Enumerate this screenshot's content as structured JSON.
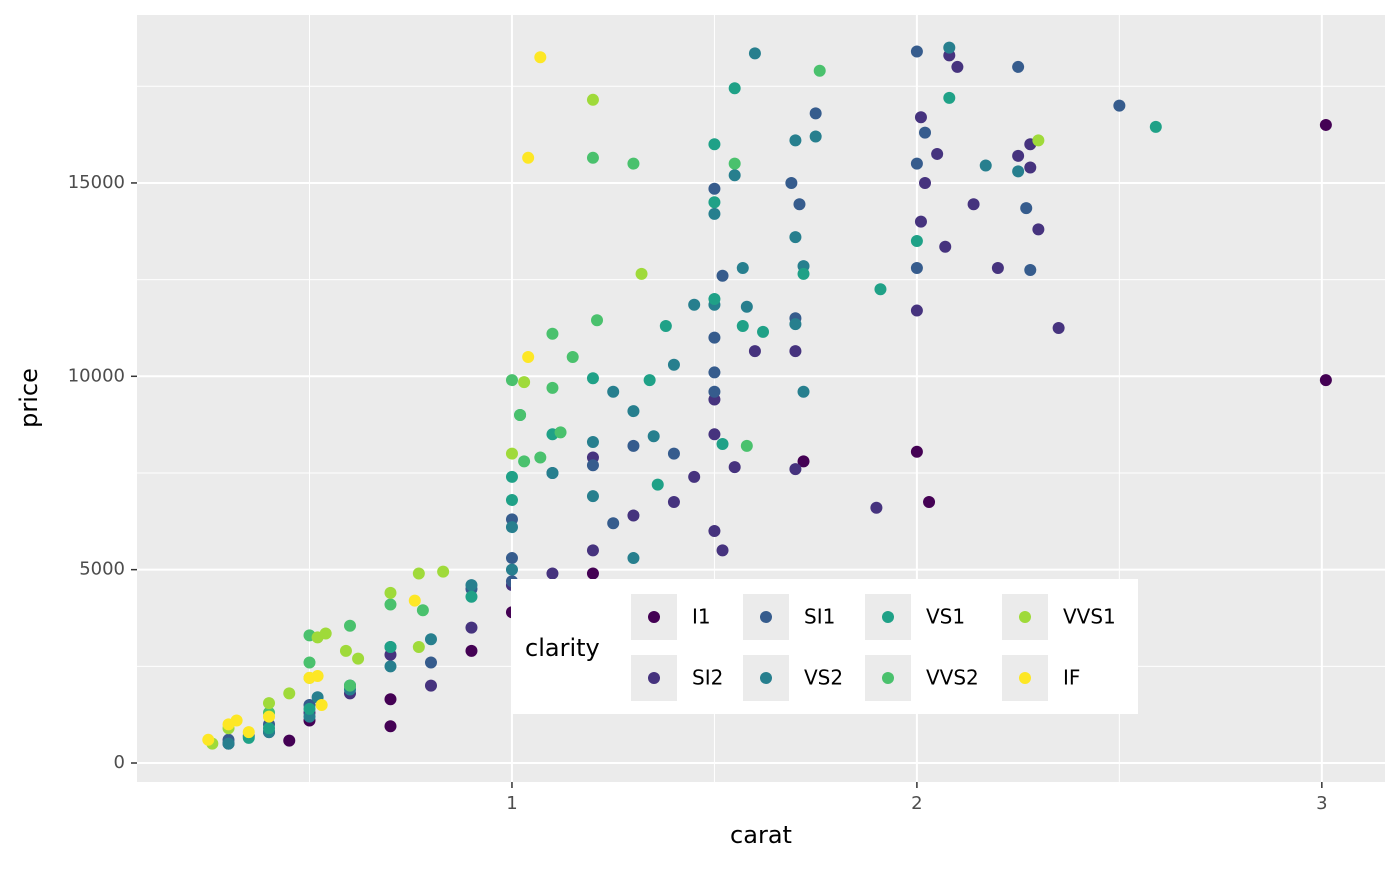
{
  "chart_data": {
    "type": "scatter",
    "x_label": "carat",
    "y_label": "price",
    "legend_title": "clarity",
    "xlim": [
      0.074,
      3.156
    ],
    "ylim": [
      -491,
      19343
    ],
    "xticks": [
      1,
      2,
      3
    ],
    "yticks": [
      0,
      5000,
      10000,
      15000
    ],
    "x_minor_ticks": [
      0.5,
      1.5,
      2.5
    ],
    "y_minor_ticks": [
      2500,
      7500,
      12500,
      17500
    ],
    "grid": true,
    "legend_position": "inside-bottom",
    "series": [
      {
        "name": "I1",
        "color": "#440154",
        "x": [
          3.01,
          3.01,
          2.0,
          2.03,
          1.72,
          0.7,
          0.45,
          0.7,
          0.9,
          1.0,
          1.2,
          0.5
        ],
        "values": [
          16500,
          9900,
          8050,
          6750,
          7800,
          950,
          580,
          1650,
          2900,
          3900,
          4900,
          1100
        ]
      },
      {
        "name": "SI2",
        "color": "#46337E",
        "x": [
          2.01,
          2.02,
          2.05,
          2.1,
          2.08,
          2.25,
          2.28,
          2.28,
          2.3,
          2.14,
          2.07,
          2.35,
          2.0,
          1.9,
          1.7,
          1.6,
          1.5,
          1.5,
          1.52,
          1.5,
          1.4,
          1.45,
          1.55,
          1.2,
          1.1,
          1.0,
          0.9,
          0.7,
          0.6,
          0.5,
          0.4,
          0.3,
          1.2,
          1.3,
          0.8,
          2.2,
          1.7,
          2.01
        ],
        "values": [
          16700,
          15000,
          15750,
          18000,
          18300,
          15700,
          16000,
          15400,
          13800,
          14450,
          13350,
          11250,
          11700,
          6600,
          10650,
          10650,
          9400,
          8500,
          5500,
          6000,
          6750,
          7400,
          7650,
          5500,
          4900,
          4600,
          3500,
          2800,
          1800,
          1300,
          800,
          500,
          7900,
          6400,
          2000,
          12800,
          7600,
          14000
        ]
      },
      {
        "name": "SI1",
        "color": "#365C8D",
        "x": [
          2.0,
          2.25,
          2.5,
          2.02,
          1.75,
          1.69,
          1.71,
          1.5,
          1.52,
          2.27,
          2.28,
          2.0,
          1.5,
          1.5,
          1.5,
          1.3,
          1.2,
          1.1,
          1.0,
          1.0,
          0.9,
          0.7,
          0.6,
          0.5,
          0.4,
          0.3,
          1.4,
          1.25,
          1.7,
          1.0,
          0.8,
          0.35,
          2.0
        ],
        "values": [
          18400,
          18000,
          17000,
          16300,
          16800,
          15000,
          14450,
          14850,
          12600,
          14350,
          12750,
          12800,
          11000,
          9600,
          10100,
          8200,
          7700,
          7500,
          6300,
          5300,
          4500,
          3000,
          2000,
          1500,
          1000,
          600,
          8000,
          6200,
          11500,
          4700,
          2600,
          700,
          15500
        ]
      },
      {
        "name": "VS2",
        "color": "#277F8E",
        "x": [
          1.6,
          2.08,
          1.75,
          1.7,
          1.55,
          1.5,
          2.25,
          2.17,
          1.7,
          1.72,
          1.57,
          1.5,
          1.58,
          1.45,
          1.7,
          1.72,
          1.35,
          1.3,
          1.2,
          1.4,
          1.25,
          1.0,
          1.1,
          0.9,
          0.8,
          0.7,
          0.6,
          0.5,
          0.4,
          0.3,
          1.0,
          1.2,
          0.52,
          1.3
        ],
        "values": [
          18350,
          18500,
          16200,
          16100,
          15200,
          14200,
          15300,
          15450,
          13600,
          12850,
          12800,
          11850,
          11800,
          11850,
          11350,
          9600,
          8450,
          9100,
          8300,
          10300,
          9600,
          6100,
          7500,
          4600,
          3200,
          2500,
          1900,
          1200,
          800,
          500,
          5000,
          6900,
          1700,
          5300
        ]
      },
      {
        "name": "VS1",
        "color": "#1FA187",
        "x": [
          2.59,
          2.08,
          1.55,
          1.5,
          1.5,
          1.91,
          1.72,
          1.62,
          1.57,
          1.38,
          1.34,
          1.2,
          1.02,
          1.1,
          1.0,
          1.0,
          0.9,
          0.7,
          0.6,
          0.5,
          0.4,
          1.52,
          1.36,
          2.0,
          1.5,
          0.35
        ],
        "values": [
          16450,
          17200,
          17450,
          16000,
          14500,
          12250,
          12650,
          11150,
          11300,
          11300,
          9900,
          9950,
          9000,
          8500,
          7400,
          6800,
          4300,
          3000,
          2000,
          1400,
          900,
          8250,
          7200,
          13500,
          12000,
          650
        ]
      },
      {
        "name": "VVS2",
        "color": "#4AC16D",
        "x": [
          1.2,
          1.3,
          1.55,
          1.76,
          1.21,
          1.1,
          1.15,
          1.0,
          1.02,
          1.1,
          1.12,
          1.03,
          1.07,
          0.7,
          0.5,
          0.5,
          0.6,
          0.4,
          0.78,
          0.6,
          1.58
        ],
        "values": [
          15650,
          15500,
          15500,
          17900,
          11450,
          11100,
          10500,
          9900,
          9000,
          9700,
          8550,
          7800,
          7900,
          4100,
          2600,
          3300,
          3550,
          1300,
          3950,
          2000,
          8200
        ]
      },
      {
        "name": "VVS1",
        "color": "#9FDA3A",
        "x": [
          1.2,
          2.3,
          1.32,
          1.03,
          1.0,
          0.7,
          0.77,
          0.83,
          0.52,
          0.54,
          0.59,
          0.4,
          0.45,
          0.3,
          0.26,
          0.62,
          0.77,
          0.5
        ],
        "values": [
          17150,
          16100,
          12650,
          9850,
          8000,
          4400,
          4900,
          4950,
          3250,
          3350,
          2900,
          1550,
          1800,
          900,
          500,
          2700,
          3000,
          2200
        ]
      },
      {
        "name": "IF",
        "color": "#FDE725",
        "x": [
          1.07,
          1.04,
          1.04,
          0.76,
          0.5,
          0.52,
          0.4,
          0.3,
          0.35,
          0.53,
          0.25,
          0.32
        ],
        "values": [
          18250,
          15650,
          10500,
          4200,
          2200,
          2250,
          1200,
          1000,
          800,
          1500,
          600,
          1100
        ]
      }
    ]
  }
}
